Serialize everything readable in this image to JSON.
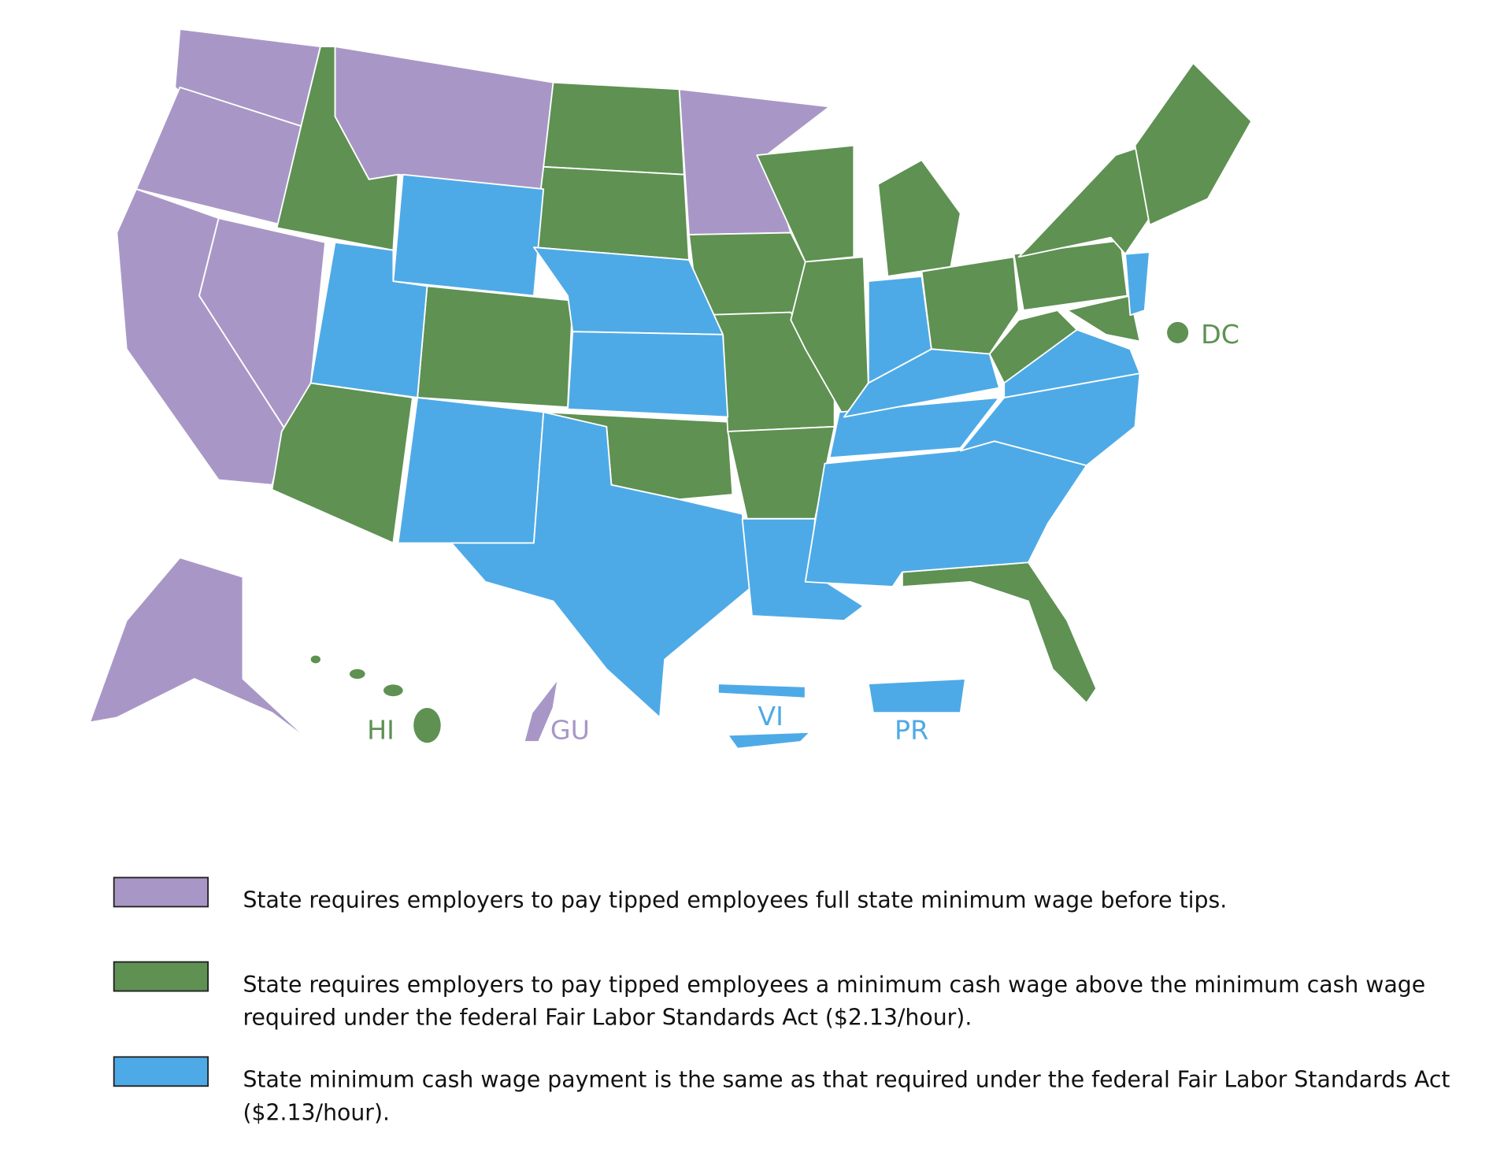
{
  "map": {
    "labels": [
      {
        "text": "DC",
        "color": "#5e9152"
      },
      {
        "text": "HI",
        "color": "#5e9152"
      },
      {
        "text": "GU",
        "color": "#a897c6"
      },
      {
        "text": "VI",
        "color": "#4eaae6"
      },
      {
        "text": "PR",
        "color": "#4eaae6"
      }
    ]
  },
  "legend": [
    {
      "color": "#a897c6",
      "lines": [
        "State requires employers to pay tipped employees full state minimum wage before tips."
      ]
    },
    {
      "color": "#5e9152",
      "lines": [
        "State requires employers to pay tipped employees a minimum cash wage above the minimum cash wage",
        "required under the federal Fair Labor Standards Act ($2.13/hour)."
      ]
    },
    {
      "color": "#4eaae6",
      "lines": [
        "State minimum cash wage payment is the same as that required under the federal Fair Labor Standards Act",
        "($2.13/hour)."
      ]
    }
  ]
}
